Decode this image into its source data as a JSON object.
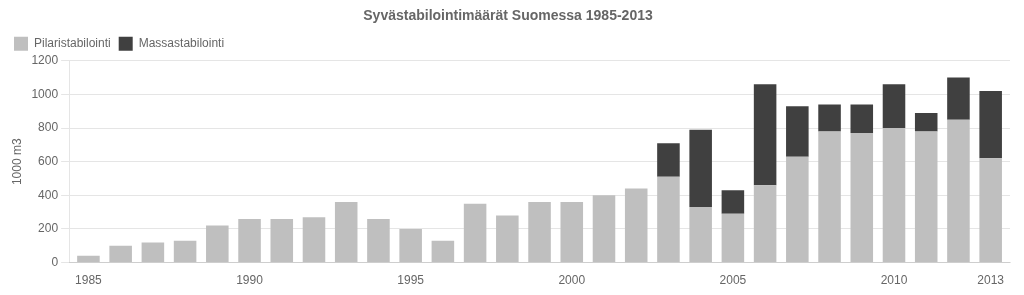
{
  "chart_data": {
    "type": "bar",
    "title": "Syvästabilointimäärät Suomessa 1985-2013",
    "ylabel": "1000 m3",
    "x": [
      1985,
      1986,
      1987,
      1988,
      1989,
      1990,
      1991,
      1992,
      1993,
      1994,
      1995,
      1996,
      1997,
      1998,
      1999,
      2000,
      2001,
      2002,
      2003,
      2004,
      2005,
      2006,
      2007,
      2008,
      2009,
      2010,
      2011,
      2012,
      2013
    ],
    "series": [
      {
        "name": "Pilaristabilointi",
        "color": "#bfbfbf",
        "values": [
          40,
          100,
          120,
          130,
          220,
          260,
          260,
          270,
          360,
          260,
          200,
          130,
          350,
          280,
          360,
          360,
          400,
          440,
          510,
          330,
          290,
          460,
          630,
          780,
          770,
          800,
          780,
          850,
          620
        ]
      },
      {
        "name": "Massastabilointi",
        "color": "#404040",
        "values": [
          0,
          0,
          0,
          0,
          0,
          0,
          0,
          0,
          0,
          0,
          0,
          0,
          0,
          0,
          0,
          0,
          0,
          0,
          200,
          460,
          140,
          600,
          300,
          160,
          170,
          260,
          110,
          250,
          400
        ]
      }
    ],
    "stacked": true,
    "xlim": [
      1984.4,
      2013.6
    ],
    "xticks": [
      1985,
      1990,
      1995,
      2000,
      2005,
      2010,
      2013
    ],
    "ylim": [
      0,
      1200
    ],
    "yticks": [
      0,
      200,
      400,
      600,
      800,
      1000,
      1200
    ],
    "grid": "y",
    "legend": "upper left"
  }
}
